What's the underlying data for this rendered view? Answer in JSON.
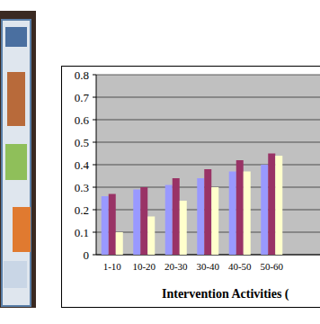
{
  "chart_data": {
    "type": "bar",
    "x_label": "Intervention Activities (",
    "categories": [
      "1-10",
      "10-20",
      "20-30",
      "30-40",
      "40-50",
      "50-60"
    ],
    "series": [
      {
        "color": "#9999ff",
        "values": [
          0.26,
          0.29,
          0.31,
          0.34,
          0.37,
          0.4
        ]
      },
      {
        "color": "#993366",
        "values": [
          0.27,
          0.3,
          0.34,
          0.38,
          0.42,
          0.45
        ]
      },
      {
        "color": "#ffffcc",
        "values": [
          0.1,
          0.17,
          0.24,
          0.3,
          0.37,
          0.44
        ]
      }
    ],
    "ylim": [
      0,
      0.8
    ],
    "yticks": [
      0,
      0.1,
      0.2,
      0.3,
      0.4,
      0.5,
      0.6,
      0.7,
      0.8
    ],
    "grid": true
  }
}
